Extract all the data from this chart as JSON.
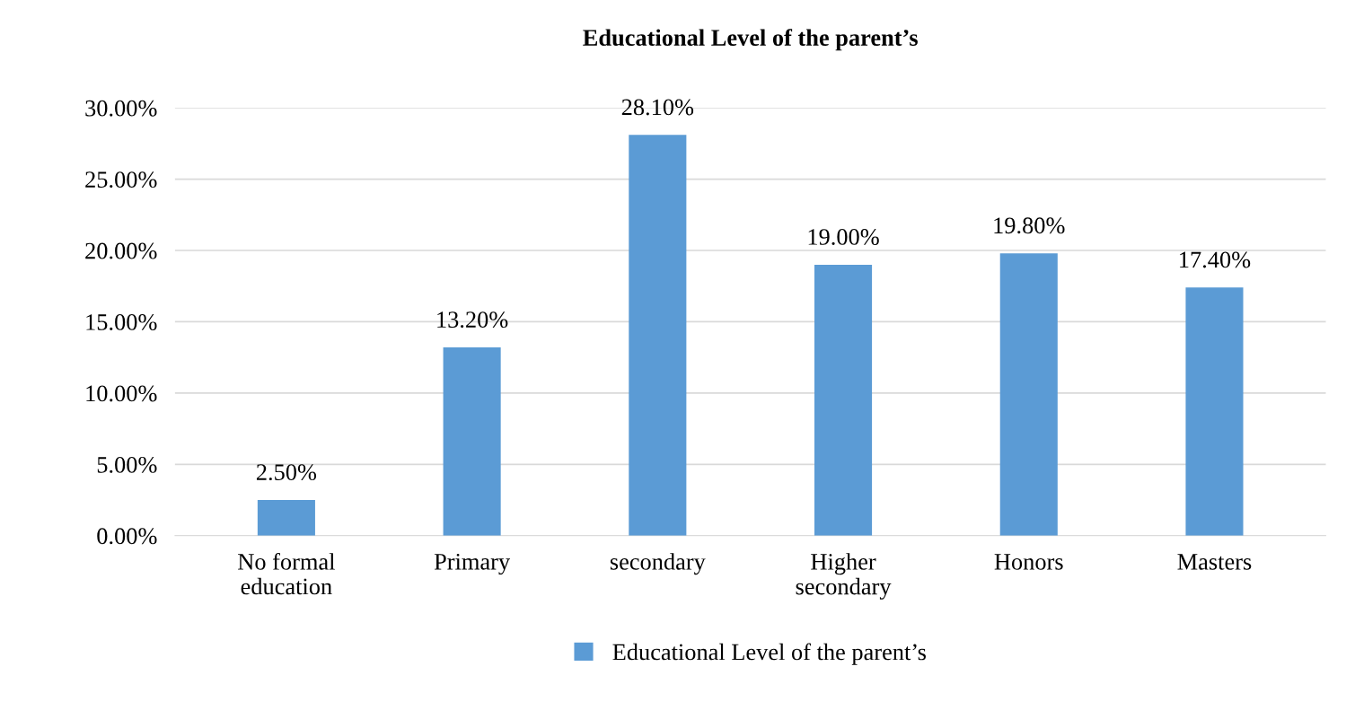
{
  "chart_data": {
    "type": "bar",
    "title": "Educational Level of the parent’s",
    "categories": [
      "No formal\neducation",
      "Primary",
      "secondary",
      "Higher\nsecondary",
      "Honors",
      "Masters"
    ],
    "series": [
      {
        "name": "Educational Level of the parent’s",
        "color": "#5b9bd5",
        "values": [
          2.5,
          13.2,
          28.1,
          19.0,
          19.8,
          17.4
        ],
        "value_labels": [
          "2.50%",
          "13.20%",
          "28.10%",
          "19.00%",
          "19.80%",
          "17.40%"
        ]
      }
    ],
    "ylim": [
      0,
      30
    ],
    "yticks": [
      {
        "value": 0,
        "label": "0.00%"
      },
      {
        "value": 5,
        "label": "5.00%"
      },
      {
        "value": 10,
        "label": "10.00%"
      },
      {
        "value": 15,
        "label": "15.00%"
      },
      {
        "value": 20,
        "label": "20.00%"
      },
      {
        "value": 25,
        "label": "25.00%"
      },
      {
        "value": 30,
        "label": "30.00%"
      }
    ],
    "grid": "y",
    "legend": "bottom"
  }
}
